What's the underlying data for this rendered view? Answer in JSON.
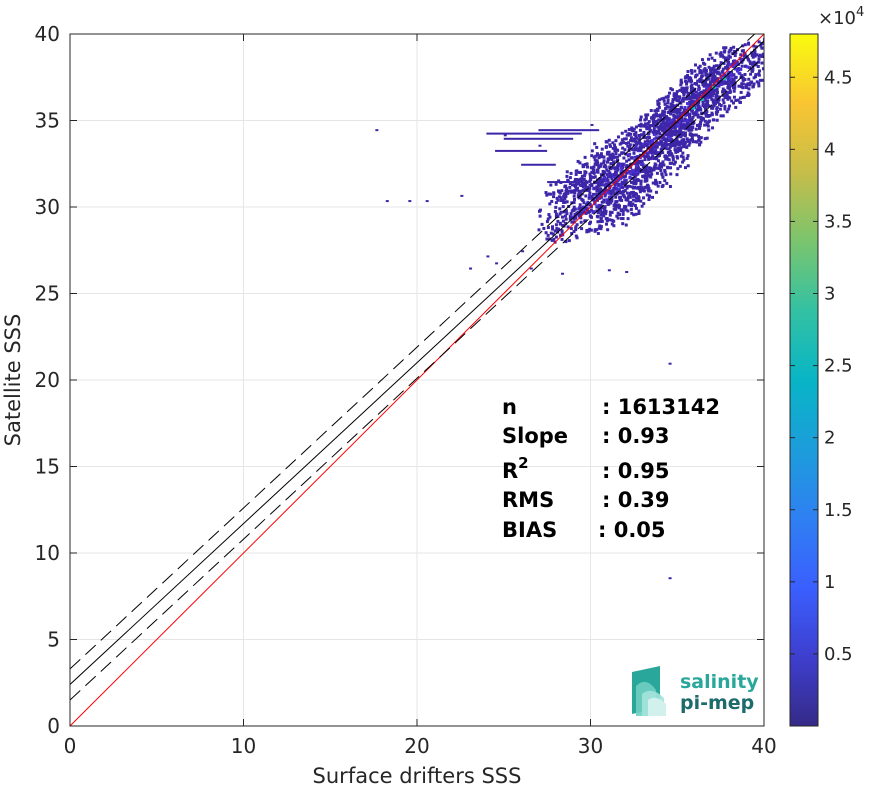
{
  "chart_data": {
    "type": "heatmap",
    "xlabel": "Surface drifters SSS",
    "ylabel": "Satellite SSS",
    "xlim": [
      0,
      40
    ],
    "ylim": [
      0,
      40
    ],
    "xticks": [
      "0",
      "10",
      "20",
      "30",
      "40"
    ],
    "yticks": [
      "0",
      "5",
      "10",
      "15",
      "20",
      "25",
      "30",
      "35",
      "40"
    ],
    "grid": true,
    "colorbar": {
      "colormap": "parula",
      "multiplier": "×10",
      "exponent": "4",
      "range": [
        0,
        4.8
      ],
      "ticks": [
        "0.5",
        "1",
        "1.5",
        "2",
        "2.5",
        "3",
        "3.5",
        "4",
        "4.5"
      ]
    },
    "lines": [
      {
        "role": "identity",
        "color": "#ff0000",
        "slope": 1.0,
        "intercept": 0
      },
      {
        "role": "regression",
        "color": "#000000",
        "slope": 0.93,
        "intercept": 2.4
      },
      {
        "role": "regression-plus-std",
        "color": "#000000",
        "dash": true,
        "slope": 0.93,
        "intercept": 3.3
      },
      {
        "role": "regression-minus-std",
        "color": "#000000",
        "dash": true,
        "slope": 0.93,
        "intercept": 1.5
      }
    ],
    "density_main": [
      [
        29.5,
        30.0
      ],
      [
        30.0,
        30.3
      ],
      [
        30.5,
        30.8
      ],
      [
        31.0,
        31.3
      ],
      [
        31.5,
        31.8
      ],
      [
        32.0,
        32.3
      ],
      [
        32.5,
        32.7
      ],
      [
        33.0,
        33.2
      ],
      [
        33.5,
        33.6
      ],
      [
        34.0,
        34.1
      ],
      [
        34.5,
        34.6
      ],
      [
        35.0,
        35.0
      ],
      [
        35.5,
        35.5
      ],
      [
        36.0,
        36.0
      ],
      [
        36.5,
        36.6
      ],
      [
        37.0,
        37.0
      ],
      [
        37.5,
        37.4
      ],
      [
        38.0,
        37.9
      ],
      [
        38.5,
        38.2
      ]
    ],
    "density_scatter": [
      [
        17.6,
        34.5
      ],
      [
        18.2,
        30.4
      ],
      [
        19.5,
        30.4
      ],
      [
        20.5,
        30.4
      ],
      [
        22.5,
        30.7
      ],
      [
        23.0,
        26.5
      ],
      [
        24.0,
        27.2
      ],
      [
        24.5,
        26.8
      ],
      [
        26.0,
        27.5
      ],
      [
        26.5,
        26.5
      ],
      [
        28.3,
        26.2
      ],
      [
        31.0,
        26.4
      ],
      [
        32.0,
        26.3
      ],
      [
        34.5,
        8.6
      ],
      [
        34.5,
        21.0
      ],
      [
        25.0,
        34.2
      ],
      [
        27.0,
        33.6
      ],
      [
        28.0,
        31.5
      ],
      [
        30.0,
        34.8
      ]
    ],
    "stats": [
      {
        "label": "n",
        "value": ": 1613142"
      },
      {
        "label": "Slope",
        "value": ": 0.93"
      },
      {
        "label": "R",
        "sup": "2",
        "value": ": 0.95"
      },
      {
        "label": "RMS",
        "value": ": 0.39"
      },
      {
        "label": "BIAS",
        "value": ": 0.05"
      }
    ]
  },
  "logo": {
    "line1": "salinity",
    "line2": "pi-mep"
  },
  "colors": {
    "identity_line": "#ff0000",
    "regression_line": "#000000",
    "density_low": "#3d26a8",
    "density_mid": "#4a2fd6",
    "density_high": "#1fb8b8",
    "logo_teal": "#2aa79b",
    "logo_dark": "#1d6b6b"
  }
}
